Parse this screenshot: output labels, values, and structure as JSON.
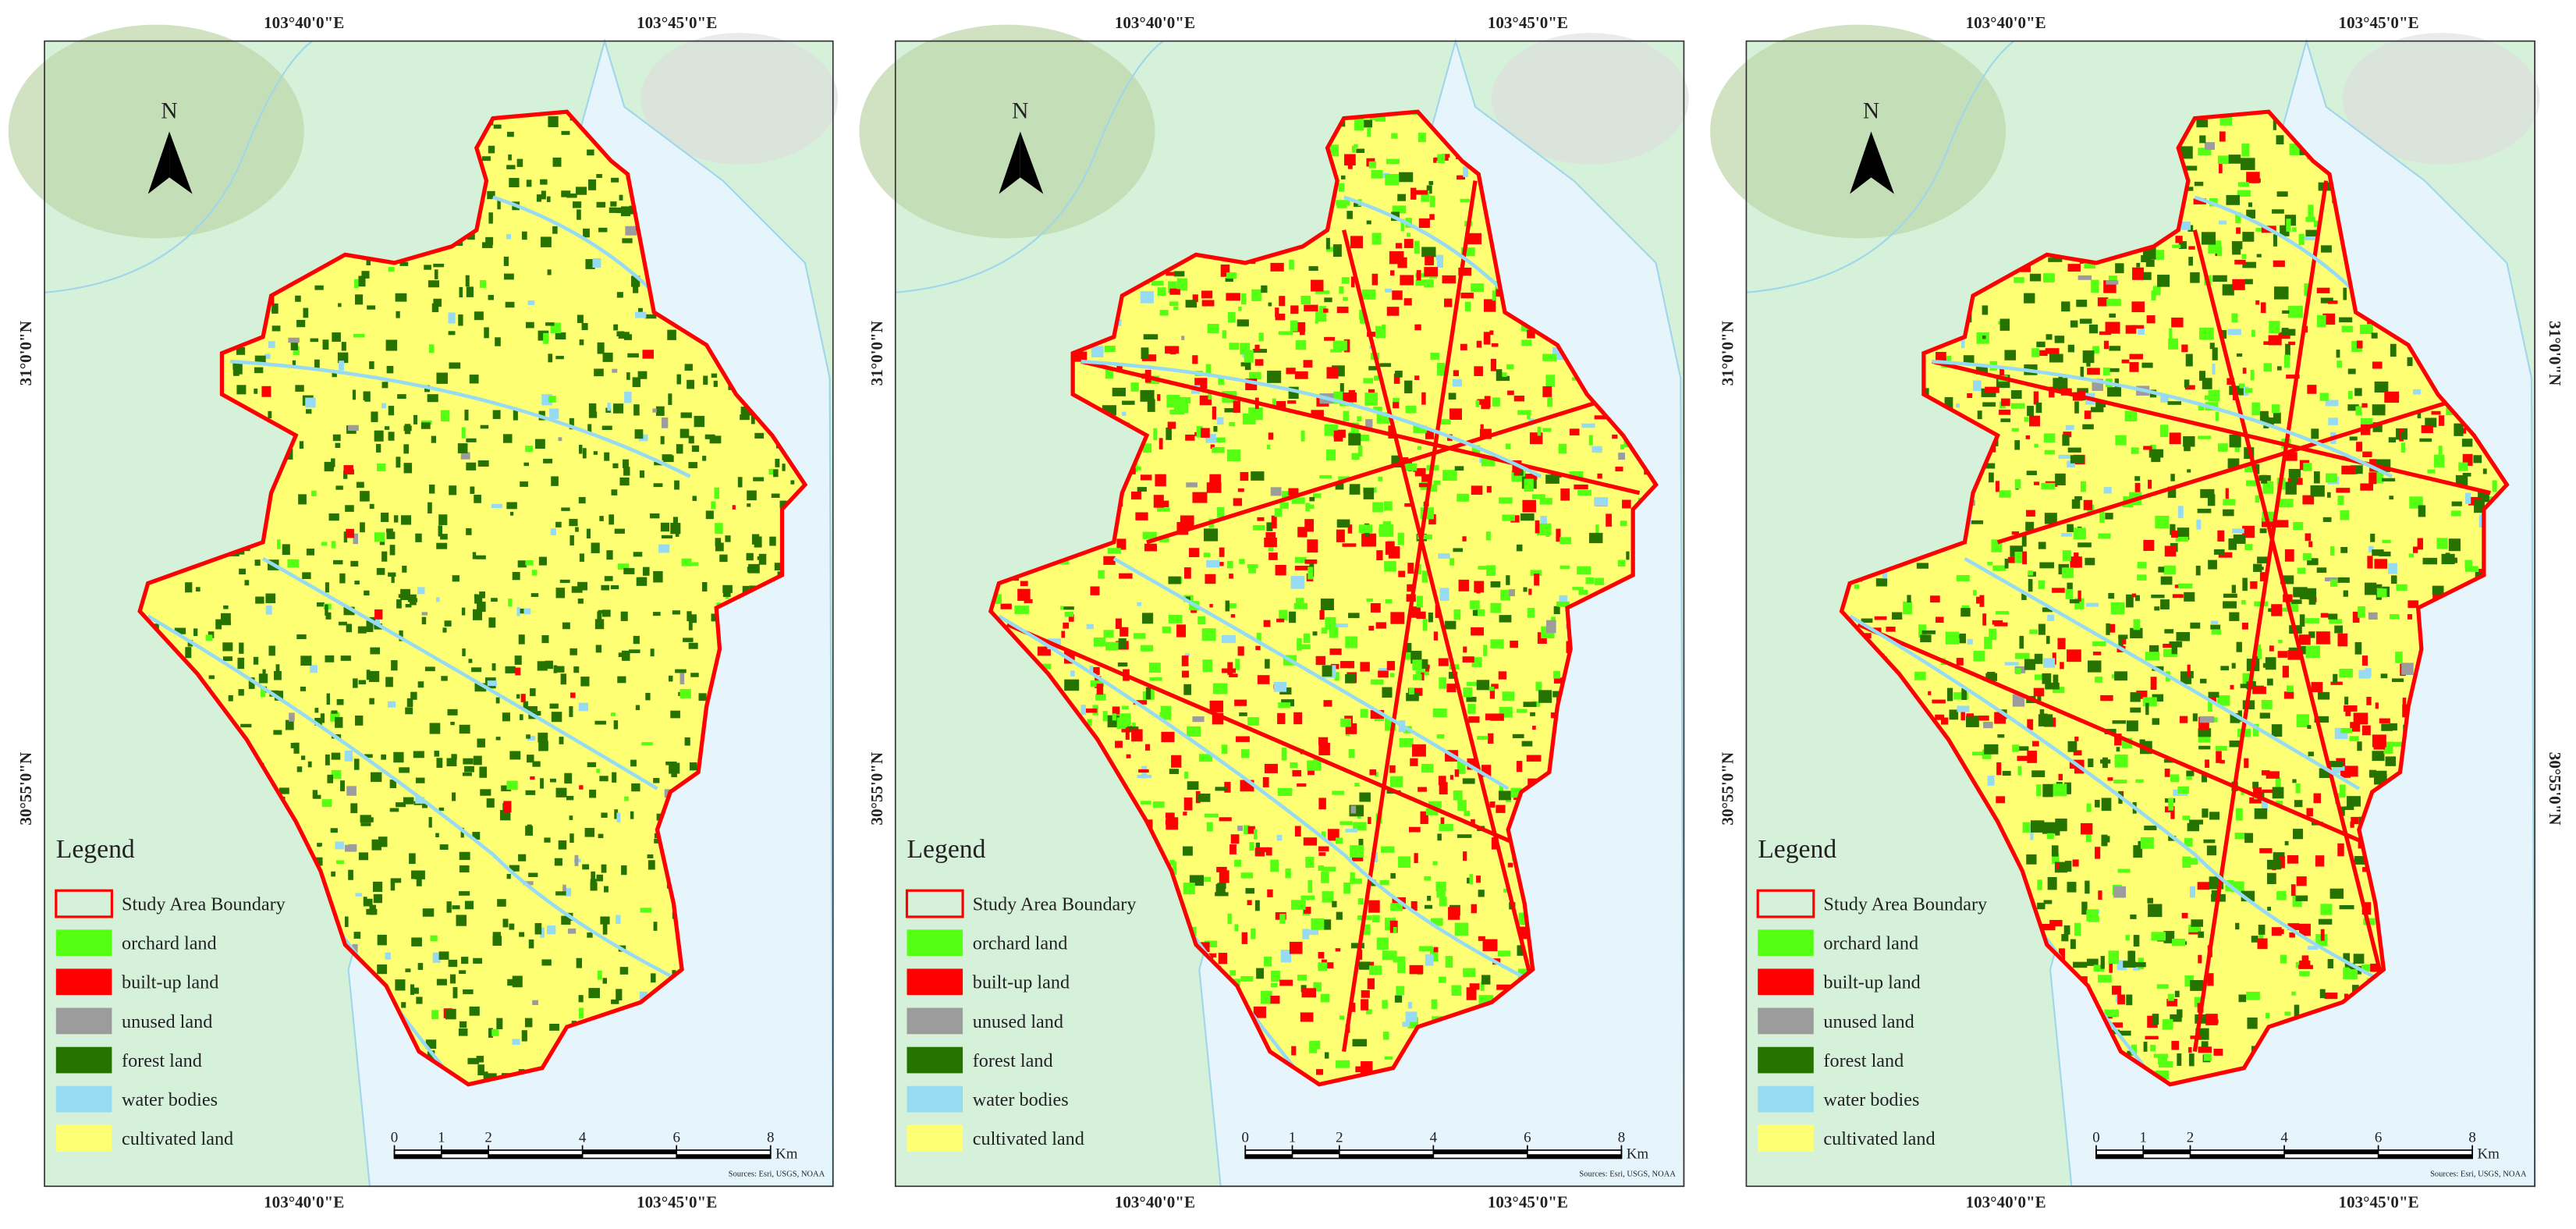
{
  "axis_labels": {
    "lon": [
      "103°40'0\"E",
      "103°45'0\"E"
    ],
    "lat": [
      "31°0'0\"N",
      "30°55'0\"N"
    ]
  },
  "north": "N",
  "legend": {
    "title": "Legend",
    "items": [
      {
        "label": "Study Area Boundary",
        "color": "#ff0000"
      },
      {
        "label": "orchard land",
        "color": "#55ff11"
      },
      {
        "label": "built-up land",
        "color": "#ff0000"
      },
      {
        "label": "unused land",
        "color": "#9c9c9c"
      },
      {
        "label": "forest land",
        "color": "#267300"
      },
      {
        "label": "water bodies",
        "color": "#97dbf2"
      },
      {
        "label": "cultivated land",
        "color": "#ffff73"
      }
    ]
  },
  "scale_bar": {
    "ticks": [
      0,
      1,
      2,
      4,
      6,
      8
    ],
    "unit": "Km"
  },
  "source": "Sources: Esri, USGS, NOAA"
}
